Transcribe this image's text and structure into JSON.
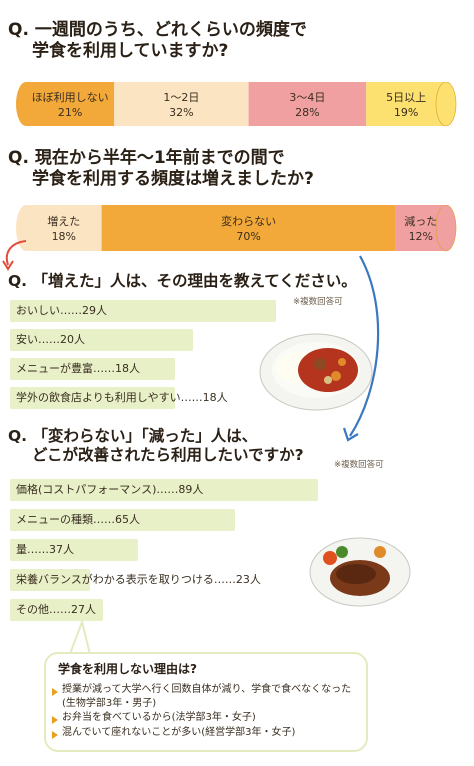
{
  "chart_data": [
    {
      "type": "bar",
      "title": "一週間のうち、どれくらいの頻度で学食を利用していますか?",
      "title_prefix": "Q.",
      "title_line1": "一週間のうち、どれくらいの頻度で",
      "title_line2": "学食を利用していますか?",
      "stacked": true,
      "categories": [
        "ほぼ利用しない",
        "1〜2日",
        "3〜4日",
        "5日以上"
      ],
      "values": [
        21,
        32,
        28,
        19
      ],
      "labels": [
        "21%",
        "32%",
        "28%",
        "19%"
      ],
      "colors": [
        "#f2a93a",
        "#fbe4c2",
        "#f0a0a0",
        "#fce070"
      ]
    },
    {
      "type": "bar",
      "title": "現在から半年〜1年前までの間で学食を利用する頻度は増えましたか?",
      "title_prefix": "Q.",
      "title_line1": "現在から半年〜1年前までの間で",
      "title_line2": "学食を利用する頻度は増えましたか?",
      "stacked": true,
      "categories": [
        "増えた",
        "変わらない",
        "減った"
      ],
      "values": [
        18,
        70,
        12
      ],
      "labels": [
        "18%",
        "70%",
        "12%"
      ],
      "colors": [
        "#fbe4c2",
        "#f2a93a",
        "#f0a0a0"
      ]
    },
    {
      "type": "bar",
      "title": "「増えた」人は、その理由を教えてください。",
      "title_prefix": "Q.",
      "note": "※複数回答可",
      "categories": [
        "おいしい",
        "安い",
        "メニューが豊富",
        "学外の飲食店よりも利用しやすい"
      ],
      "values": [
        29,
        20,
        18,
        18
      ],
      "labels": [
        "おいしい……29人",
        "安い……20人",
        "メニューが豊富……18人",
        "学外の飲食店よりも利用しやすい……18人"
      ]
    },
    {
      "type": "bar",
      "title": "「変わらない」「減った」人は、どこが改善されたら利用したいですか?",
      "title_prefix": "Q.",
      "title_line1": "「変わらない」「減った」人は、",
      "title_line2": "どこが改善されたら利用したいですか?",
      "note": "※複数回答可",
      "categories": [
        "価格(コストパフォーマンス)",
        "メニューの種類",
        "量",
        "栄養バランスがわかる表示を取りつける",
        "その他"
      ],
      "values": [
        89,
        65,
        37,
        23,
        27
      ],
      "labels": [
        "価格(コストパフォーマンス)……89人",
        "メニューの種類……65人",
        "量……37人",
        "栄養バランスがわかる表示を取りつける……23人",
        "その他……27人"
      ]
    }
  ],
  "bubble": {
    "title": "学食を利用しない理由は?",
    "reasons": [
      "授業が減って大学へ行く回数自体が減り、学食で食べなくなった(生物学部3年・男子)",
      "お弁当を食べているから(法学部3年・女子)",
      "混んでいて座れないことが多い(経営学部3年・女子)"
    ]
  },
  "icons": [
    "curry-plate-icon",
    "hamburg-plate-icon",
    "curved-arrow-icon"
  ]
}
